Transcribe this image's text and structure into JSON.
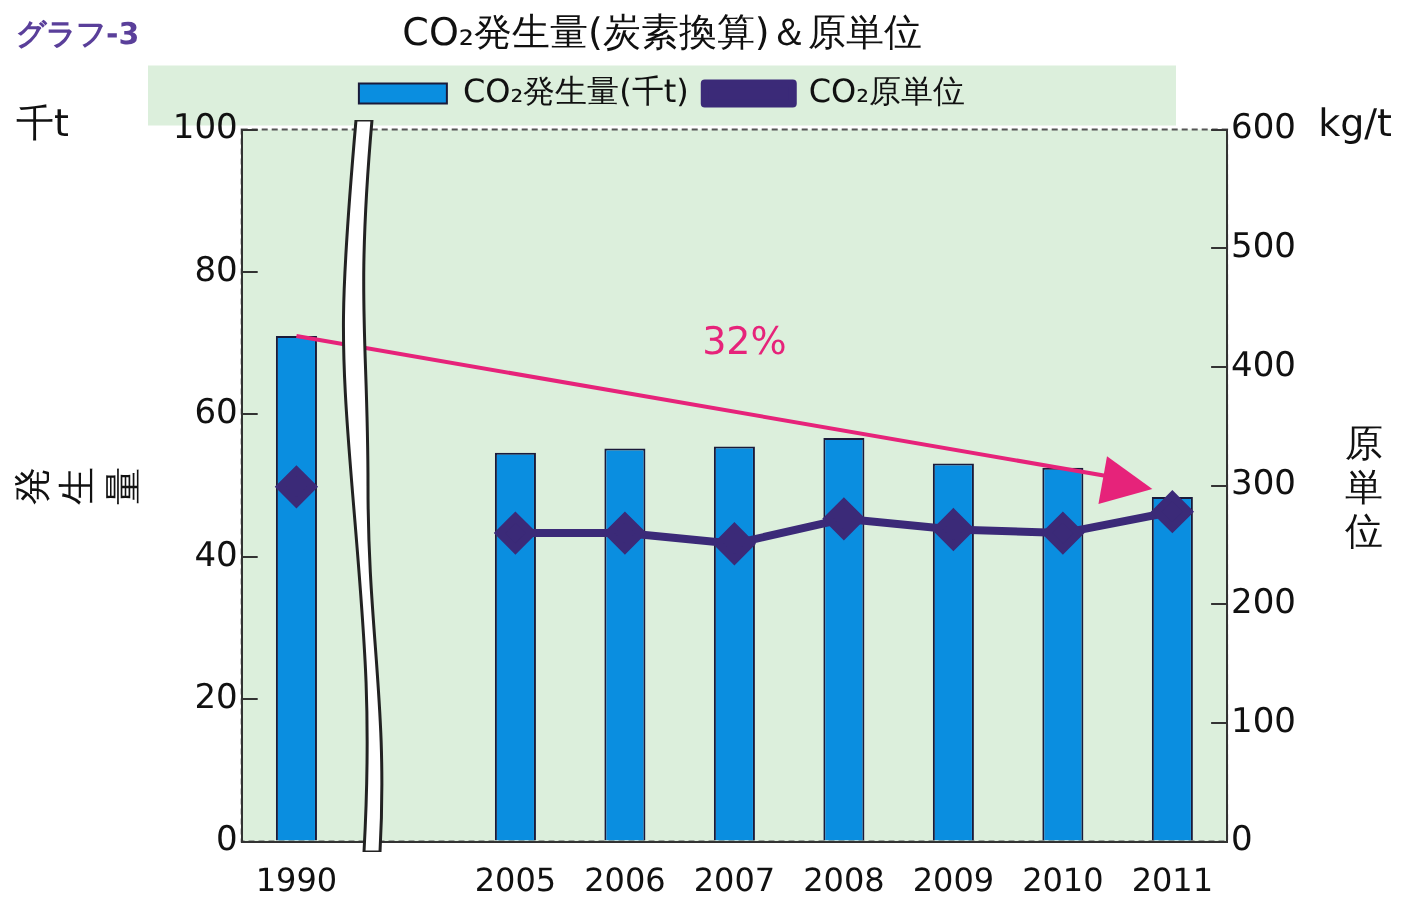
{
  "chart_data": {
    "type": "bar",
    "title": "CO₂発生量(炭素換算)＆原単位",
    "ylabel": "発生量",
    "y2label": "原単位",
    "annotations": [
      "グラフ-3",
      "千t",
      "kg/t",
      "32%"
    ],
    "categories": [
      "1990",
      null,
      "2005",
      "2006",
      "2007",
      "2008",
      "2009",
      "2010",
      "2011"
    ],
    "series": [
      {
        "name": "CO₂発生量(千t)",
        "color": "#0a8ee0",
        "values": [
          71,
          null,
          54.6,
          55.2,
          55.5,
          56.7,
          53.1,
          52.5,
          48.4
        ]
      },
      {
        "name": "CO₂原単位",
        "type": "line",
        "axis": "y2",
        "color": "#3b2a78",
        "marker": "diamond",
        "values": [
          299,
          null,
          260,
          260,
          251,
          272,
          263,
          260,
          278
        ]
      }
    ],
    "ylim": [
      0,
      100
    ],
    "yticks": [
      0,
      20,
      40,
      60,
      80,
      100
    ],
    "y2lim": [
      0,
      600
    ],
    "y2ticks": [
      0,
      100,
      200,
      300,
      400,
      500,
      600
    ],
    "grid": false,
    "legend": "top"
  }
}
